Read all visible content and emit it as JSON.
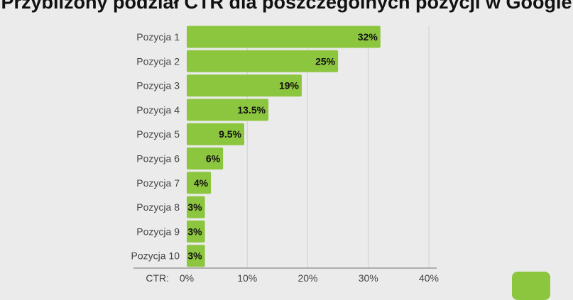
{
  "chart_data": {
    "type": "bar",
    "orientation": "horizontal",
    "title": "Przybliżony podział CTR dla poszczególnych pozycji w Google",
    "xlabel": "CTR:",
    "categories": [
      "Pozycja 1",
      "Pozycja 2",
      "Pozycja 3",
      "Pozycja 4",
      "Pozycja 5",
      "Pozycja 6",
      "Pozycja 7",
      "Pozycja 8",
      "Pozycja 9",
      "Pozycja 10"
    ],
    "values": [
      32,
      25,
      19,
      13.5,
      9.5,
      6,
      4,
      3,
      3,
      3
    ],
    "data_labels": [
      "32%",
      "25%",
      "19%",
      "13.5%",
      "9.5%",
      "6%",
      "4%",
      "3%",
      "3%",
      "3%"
    ],
    "xlim": [
      0,
      40
    ],
    "xticks": [
      "0%",
      "10%",
      "20%",
      "30%",
      "40%"
    ],
    "grid": true,
    "bar_color": "#8cc63f"
  }
}
